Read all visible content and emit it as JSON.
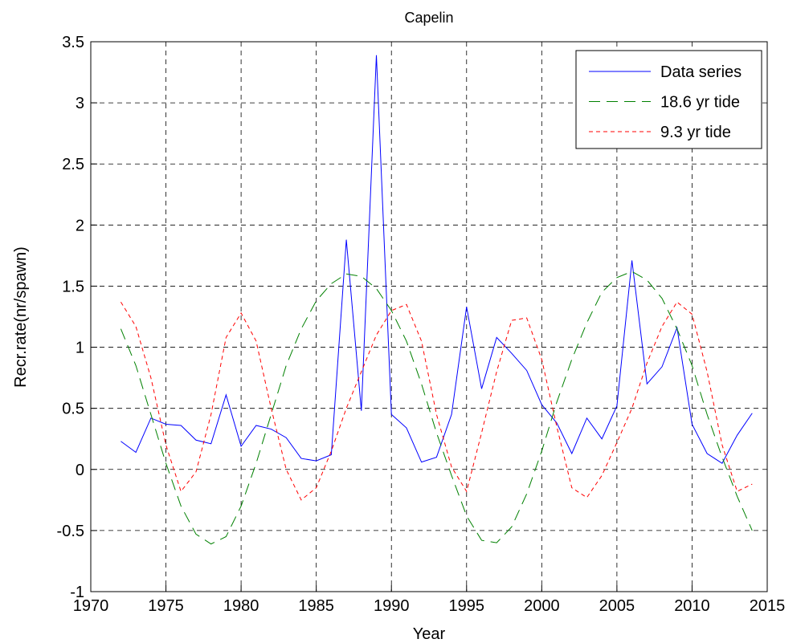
{
  "chart_data": {
    "type": "line",
    "title": "Capelin",
    "x_label": "Year",
    "y_label": "Recr.rate(nr/spawn)",
    "x": [
      1972,
      1973,
      1974,
      1975,
      1976,
      1977,
      1978,
      1979,
      1980,
      1981,
      1982,
      1983,
      1984,
      1985,
      1986,
      1987,
      1988,
      1989,
      1990,
      1991,
      1992,
      1993,
      1994,
      1995,
      1996,
      1997,
      1998,
      1999,
      2000,
      2001,
      2002,
      2003,
      2004,
      2005,
      2006,
      2007,
      2008,
      2009,
      2010,
      2011,
      2012,
      2013,
      2014
    ],
    "series": [
      {
        "name": "Data series",
        "color": "#0000ff",
        "linestyle": "solid",
        "values": [
          0.23,
          0.14,
          0.42,
          0.37,
          0.36,
          0.24,
          0.21,
          0.61,
          0.19,
          0.36,
          0.33,
          0.26,
          0.09,
          0.07,
          0.12,
          1.88,
          0.48,
          3.39,
          0.45,
          0.34,
          0.06,
          0.1,
          0.45,
          1.33,
          0.66,
          1.08,
          0.95,
          0.81,
          0.53,
          0.38,
          0.13,
          0.42,
          0.25,
          0.52,
          1.71,
          0.7,
          0.84,
          1.16,
          0.37,
          0.13,
          0.05,
          0.28,
          0.46
        ]
      },
      {
        "name": "18.6 yr tide",
        "color": "#008000",
        "linestyle": "dashed",
        "values": [
          1.15,
          0.85,
          0.45,
          0.05,
          -0.3,
          -0.53,
          -0.61,
          -0.55,
          -0.3,
          0.05,
          0.45,
          0.85,
          1.15,
          1.38,
          1.52,
          1.6,
          1.58,
          1.48,
          1.3,
          1.05,
          0.7,
          0.3,
          -0.05,
          -0.38,
          -0.58,
          -0.6,
          -0.47,
          -0.2,
          0.15,
          0.55,
          0.9,
          1.2,
          1.45,
          1.57,
          1.62,
          1.55,
          1.4,
          1.15,
          0.85,
          0.45,
          0.1,
          -0.22,
          -0.5
        ]
      },
      {
        "name": "9.3 yr tide",
        "color": "#ff0000",
        "linestyle": "dotted",
        "values": [
          1.37,
          1.17,
          0.75,
          0.2,
          -0.18,
          -0.02,
          0.45,
          1.08,
          1.28,
          1.05,
          0.5,
          0.0,
          -0.25,
          -0.15,
          0.15,
          0.5,
          0.8,
          1.1,
          1.3,
          1.35,
          1.05,
          0.45,
          0.02,
          -0.18,
          0.3,
          0.8,
          1.22,
          1.24,
          0.9,
          0.35,
          -0.15,
          -0.23,
          -0.05,
          0.22,
          0.5,
          0.87,
          1.17,
          1.37,
          1.27,
          0.8,
          0.2,
          -0.18,
          -0.12
        ]
      }
    ],
    "xlim": [
      1970,
      2015
    ],
    "xticks": [
      1970,
      1975,
      1980,
      1985,
      1990,
      1995,
      2000,
      2005,
      2010,
      2015
    ],
    "ylim": [
      -1,
      3.5
    ],
    "yticks": [
      -1,
      -0.5,
      0,
      0.5,
      1,
      1.5,
      2,
      2.5,
      3,
      3.5
    ],
    "grid": true,
    "legend": "northeast"
  }
}
